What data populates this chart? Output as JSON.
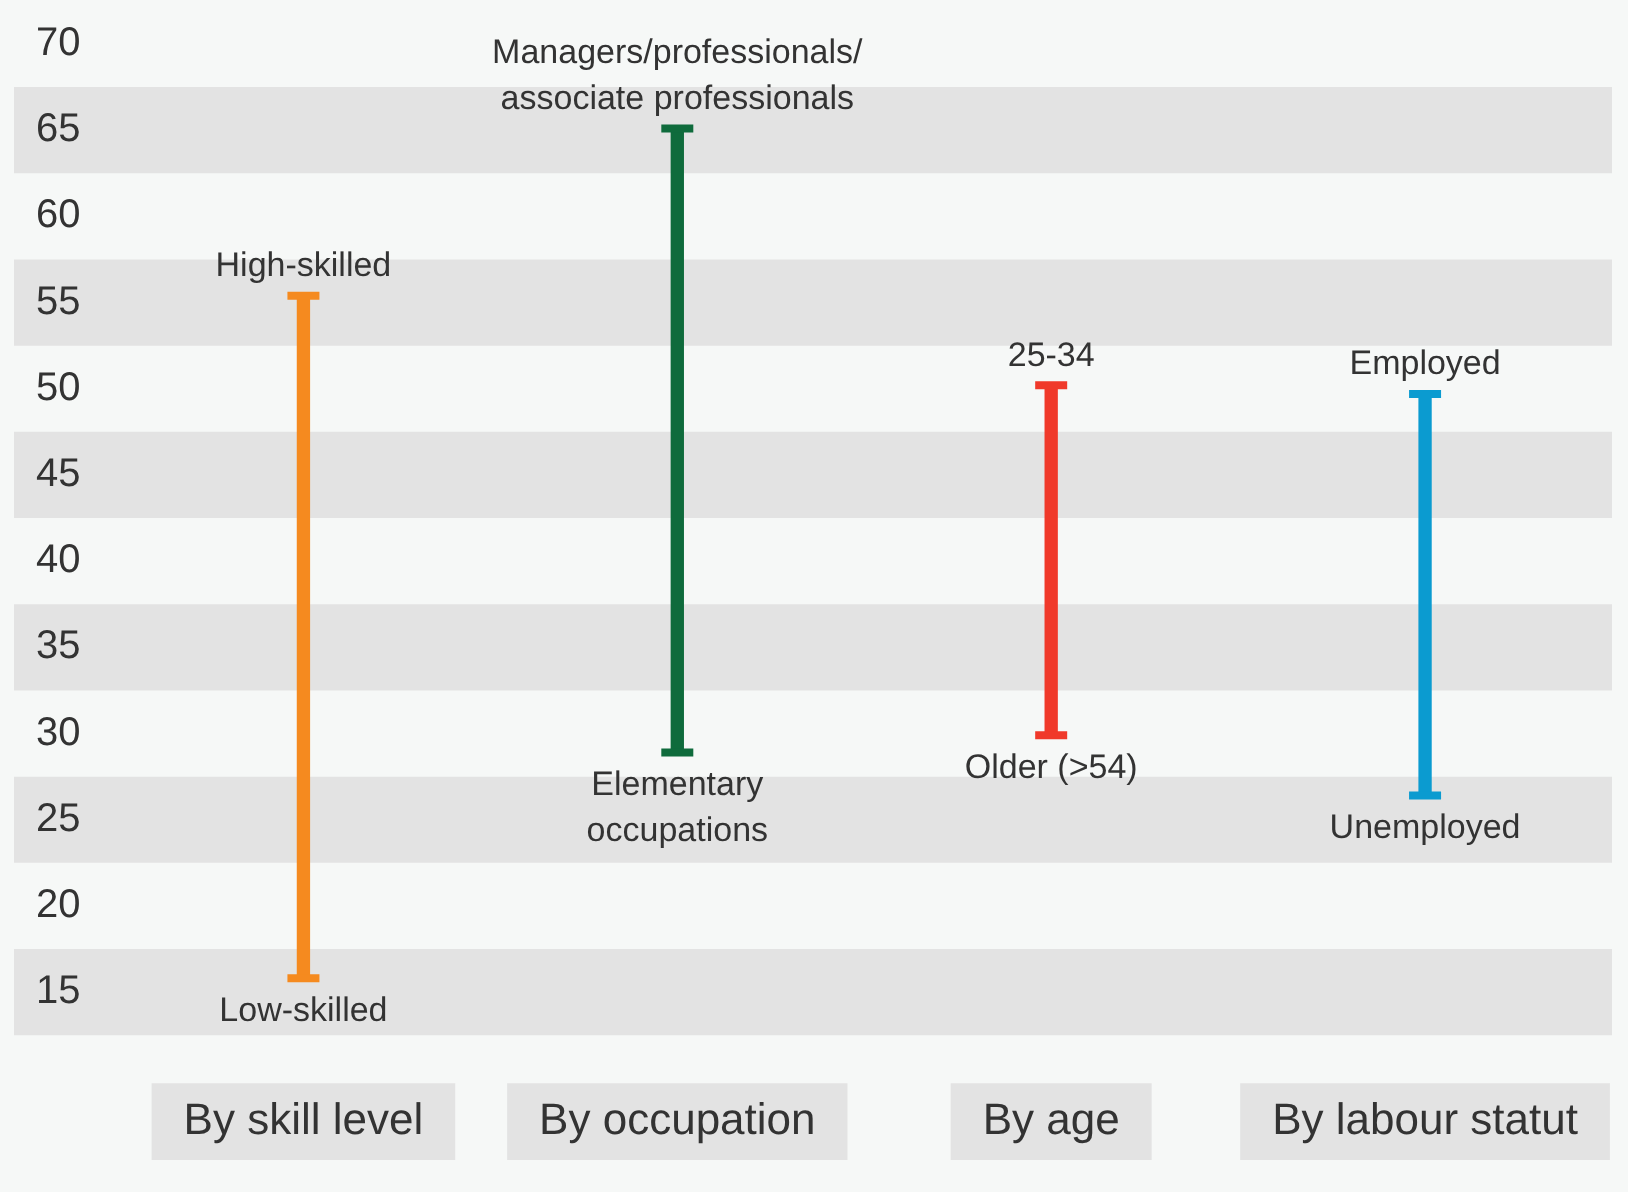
{
  "chart_data": {
    "type": "bar",
    "categories": [
      "By skill level",
      "By occupation",
      "By age",
      "By labour statut"
    ],
    "base": [
      15.8,
      28.9,
      29.9,
      26.4
    ],
    "values": [
      39.6,
      36.2,
      20.3,
      23.3
    ],
    "colors": [
      "#f58a1f",
      "#0f6b3c",
      "#f0392a",
      "#0b9bd0"
    ],
    "ylim": [
      12.5,
      70
    ],
    "yticks": [
      15,
      20,
      25,
      30,
      35,
      40,
      45,
      50,
      55,
      60,
      65,
      70
    ],
    "legend": false,
    "bands": [
      {
        "axis": "y",
        "from": 62.5,
        "to": 67.5,
        "color": "#e3e3e3"
      },
      {
        "axis": "y",
        "from": 52.5,
        "to": 57.5,
        "color": "#e3e3e3"
      },
      {
        "axis": "y",
        "from": 42.5,
        "to": 47.5,
        "color": "#e3e3e3"
      },
      {
        "axis": "y",
        "from": 32.5,
        "to": 37.5,
        "color": "#e3e3e3"
      },
      {
        "axis": "y",
        "from": 22.5,
        "to": 27.5,
        "color": "#e3e3e3"
      },
      {
        "axis": "y",
        "from": 12.5,
        "to": 17.5,
        "color": "#e3e3e3"
      }
    ],
    "annotations": [
      {
        "text": "High-skilled",
        "x": "By skill level",
        "y": 55.4
      },
      {
        "text": "Low-skilled",
        "x": "By skill level",
        "y": 15.8
      },
      {
        "text": "Managers/professionals/\nassociate professionals",
        "x": "By occupation",
        "y": 65.1
      },
      {
        "text": "Elementary\noccupations",
        "x": "By occupation",
        "y": 28.9
      },
      {
        "text": "25-34",
        "x": "By age",
        "y": 50.2
      },
      {
        "text": "Older (>54)",
        "x": "By age",
        "y": 29.9
      },
      {
        "text": "Employed",
        "x": "By labour statut",
        "y": 49.7
      },
      {
        "text": "Unemployed",
        "x": "By labour statut",
        "y": 26.4
      }
    ]
  }
}
